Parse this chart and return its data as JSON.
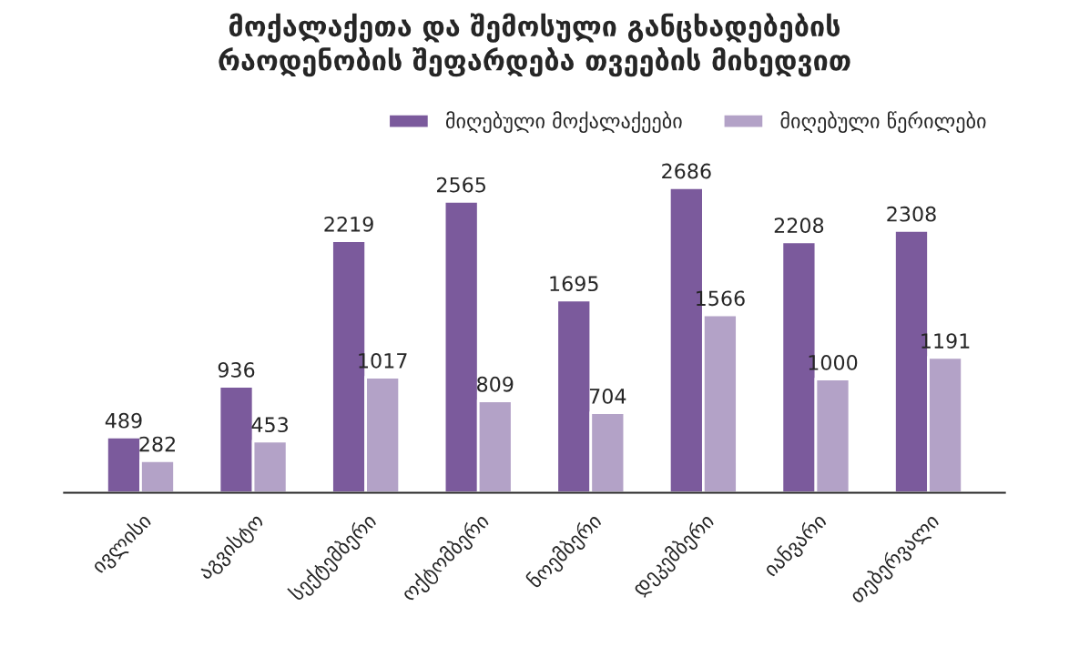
{
  "chart_data": {
    "type": "bar",
    "title": "მოქალაქეთა და შემოსული განცხადებების\nრაოდენობის შეფარდება თვეების მიხედვით",
    "categories": [
      "ივლისი",
      "აგვისტო",
      "სექტემბერი",
      "ოქტომბერი",
      "ნოემბერი",
      "დეკემბერი",
      "იანვარი",
      "თებერვალი"
    ],
    "series": [
      {
        "name": "მიღებული მოქალაქეები",
        "color": "#7b5a9c",
        "values": [
          489,
          936,
          2219,
          2565,
          1695,
          2686,
          2208,
          2308
        ]
      },
      {
        "name": "მიღებული წერილები",
        "color": "#b3a2c7",
        "values": [
          282,
          453,
          1017,
          809,
          704,
          1566,
          1000,
          1191
        ]
      }
    ],
    "data_labels": true,
    "legend": "top right",
    "grid": false
  }
}
